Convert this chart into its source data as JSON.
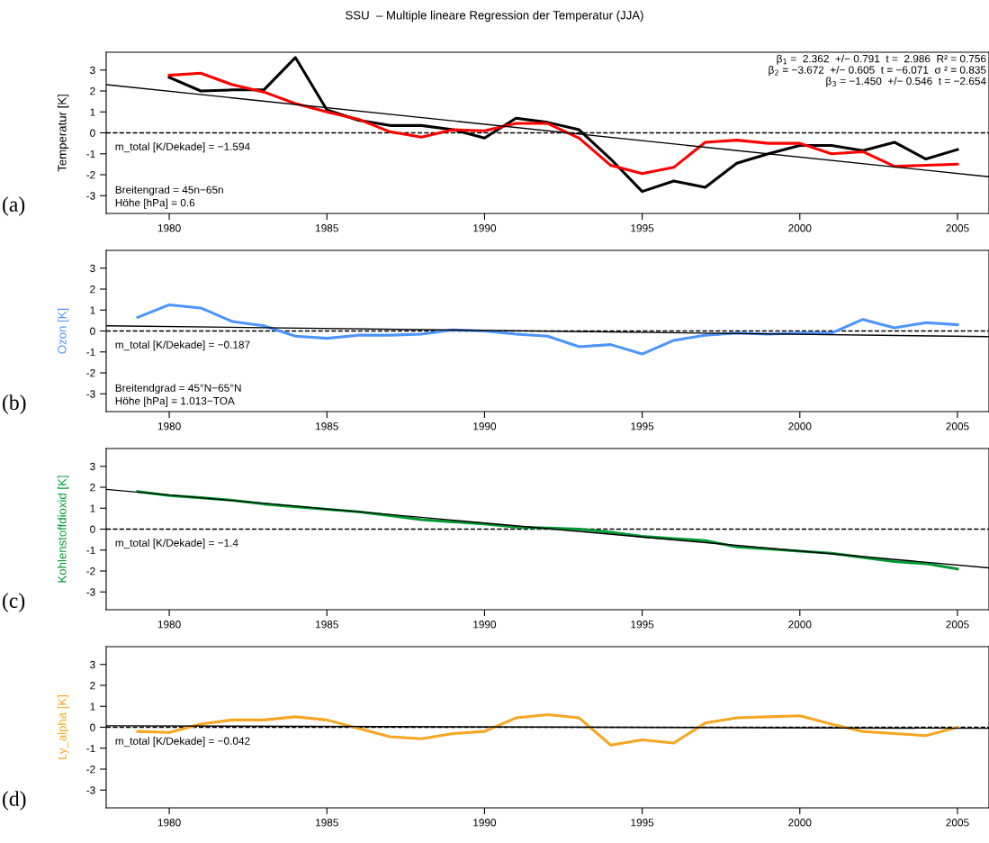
{
  "chart_data": [
    {
      "type": "line",
      "title": "SSU  – Multiple lineare Regression der Temperatur (JJA)",
      "ylabel": "Temperatur [K]",
      "xlim": [
        1978,
        2006
      ],
      "xticks": [
        1980,
        1985,
        1990,
        1995,
        2000,
        2005
      ],
      "ylim": [
        -3.85,
        3.85
      ],
      "yticks": [
        -3,
        -2,
        -1,
        0,
        1,
        2,
        3
      ],
      "grid": false,
      "legend": false,
      "marker": "none",
      "line_style": "solid",
      "series": [
        {
          "color": "#000000",
          "x": [
            1980,
            1981,
            1982,
            1983,
            1984,
            1985,
            1986,
            1987,
            1988,
            1989,
            1990,
            1991,
            1992,
            1993,
            1994,
            1995,
            1996,
            1997,
            1998,
            1999,
            2000,
            2001,
            2002,
            2003,
            2004,
            2005
          ],
          "values": [
            2.65,
            2.0,
            2.05,
            2.05,
            3.6,
            1.1,
            0.6,
            0.35,
            0.35,
            0.15,
            -0.25,
            0.7,
            0.5,
            0.15,
            -1.25,
            -2.8,
            -2.3,
            -2.6,
            -1.45,
            -1.0,
            -0.6,
            -0.6,
            -0.85,
            -0.45,
            -1.25,
            -0.8
          ]
        },
        {
          "color": "#ff0000",
          "x": [
            1980,
            1981,
            1982,
            1983,
            1984,
            1985,
            1986,
            1987,
            1988,
            1989,
            1990,
            1991,
            1992,
            1993,
            1994,
            1995,
            1996,
            1997,
            1998,
            1999,
            2000,
            2001,
            2002,
            2003,
            2004,
            2005
          ],
          "values": [
            2.75,
            2.85,
            2.3,
            1.95,
            1.4,
            1.0,
            0.65,
            0.05,
            -0.2,
            0.15,
            0.1,
            0.45,
            0.45,
            -0.25,
            -1.55,
            -1.95,
            -1.65,
            -0.45,
            -0.35,
            -0.5,
            -0.5,
            -1.0,
            -0.9,
            -1.6,
            -1.55,
            -1.5
          ]
        },
        {
          "color": "#000000",
          "x": [
            1978,
            2006
          ],
          "values": [
            2.3,
            -2.1
          ]
        }
      ],
      "ref_lines": [
        {
          "axis": "y",
          "value": 0,
          "line_style": "dashed",
          "color": "#000000"
        }
      ],
      "annotations": [
        "(a)",
        "m_total [K/Dekade] = −1.594",
        "Breitengrad = 45n−65n\nHöhe [hPa] = 0.6",
        "β$_{1}$ =  2.362  +/− 0.791  t =  2.986  R² = 0.756\nβ$_{2}$ = −3.672  +/− 0.605  t = −6.071  σ ² = 0.835\nβ$_{3}$ = −1.450  +/− 0.546  t = −2.654"
      ]
    },
    {
      "type": "line",
      "ylabel": "Ozon [K]",
      "xlim": [
        1978,
        2006
      ],
      "xticks": [
        1980,
        1985,
        1990,
        1995,
        2000,
        2005
      ],
      "ylim": [
        -3.85,
        3.85
      ],
      "yticks": [
        -3,
        -2,
        -1,
        0,
        1,
        2,
        3
      ],
      "grid": false,
      "legend": false,
      "marker": "none",
      "line_style": "solid",
      "series": [
        {
          "color": "#4d94ff",
          "x": [
            1979,
            1980,
            1981,
            1982,
            1983,
            1984,
            1985,
            1986,
            1987,
            1988,
            1989,
            1990,
            1991,
            1992,
            1993,
            1994,
            1995,
            1996,
            1997,
            1998,
            1999,
            2000,
            2001,
            2002,
            2003,
            2004,
            2005
          ],
          "values": [
            0.65,
            1.25,
            1.1,
            0.45,
            0.25,
            -0.25,
            -0.35,
            -0.2,
            -0.2,
            -0.15,
            0.05,
            0.0,
            -0.15,
            -0.25,
            -0.75,
            -0.65,
            -1.1,
            -0.45,
            -0.2,
            -0.1,
            -0.15,
            -0.1,
            -0.1,
            0.55,
            0.15,
            0.4,
            0.3
          ]
        },
        {
          "color": "#000000",
          "x": [
            1978,
            2006
          ],
          "values": [
            0.25,
            -0.27
          ]
        }
      ],
      "ref_lines": [
        {
          "axis": "y",
          "value": 0,
          "line_style": "dashed",
          "color": "#000000"
        }
      ],
      "annotations": [
        "(b)",
        "m_total [K/Dekade] = −0.187",
        "Breitendgrad = 45°N−65°N\nHöhe [hPa] = 1.013−TOA"
      ]
    },
    {
      "type": "line",
      "ylabel": "Kohlenstoffdioxid [K]",
      "xlim": [
        1978,
        2006
      ],
      "xticks": [
        1980,
        1985,
        1990,
        1995,
        2000,
        2005
      ],
      "ylim": [
        -3.85,
        3.85
      ],
      "yticks": [
        -3,
        -2,
        -1,
        0,
        1,
        2,
        3
      ],
      "grid": false,
      "legend": false,
      "marker": "none",
      "line_style": "solid",
      "series": [
        {
          "color": "#009933",
          "x": [
            1979,
            1980,
            1981,
            1982,
            1983,
            1984,
            1985,
            1986,
            1987,
            1988,
            1989,
            1990,
            1991,
            1992,
            1993,
            1994,
            1995,
            1996,
            1997,
            1998,
            1999,
            2000,
            2001,
            2002,
            2003,
            2004,
            2005
          ],
          "values": [
            1.8,
            1.6,
            1.5,
            1.38,
            1.2,
            1.07,
            0.95,
            0.83,
            0.65,
            0.45,
            0.35,
            0.25,
            0.1,
            0.05,
            0.0,
            -0.15,
            -0.35,
            -0.45,
            -0.55,
            -0.85,
            -0.95,
            -1.05,
            -1.15,
            -1.35,
            -1.55,
            -1.65,
            -1.9
          ]
        },
        {
          "color": "#000000",
          "x": [
            1978,
            2006
          ],
          "values": [
            1.9,
            -1.85
          ]
        }
      ],
      "ref_lines": [
        {
          "axis": "y",
          "value": 0,
          "line_style": "dashed",
          "color": "#000000"
        }
      ],
      "annotations": [
        "(c)",
        "m_total [K/Dekade] = −1.4"
      ]
    },
    {
      "type": "line",
      "ylabel": "Ly_alpha [K]",
      "xlim": [
        1978,
        2006
      ],
      "xticks": [
        1980,
        1985,
        1990,
        1995,
        2000,
        2005
      ],
      "ylim": [
        -3.85,
        3.85
      ],
      "yticks": [
        -3,
        -2,
        -1,
        0,
        1,
        2,
        3
      ],
      "grid": false,
      "legend": false,
      "marker": "none",
      "line_style": "solid",
      "series": [
        {
          "color": "#f5a623",
          "x": [
            1979,
            1980,
            1981,
            1982,
            1983,
            1984,
            1985,
            1986,
            1987,
            1988,
            1989,
            1990,
            1991,
            1992,
            1993,
            1994,
            1995,
            1996,
            1997,
            1998,
            1999,
            2000,
            2001,
            2002,
            2003,
            2004,
            2005
          ],
          "values": [
            -0.2,
            -0.25,
            0.15,
            0.35,
            0.35,
            0.5,
            0.35,
            -0.05,
            -0.45,
            -0.55,
            -0.3,
            -0.2,
            0.45,
            0.6,
            0.45,
            -0.85,
            -0.6,
            -0.75,
            0.2,
            0.45,
            0.5,
            0.55,
            0.15,
            -0.2,
            -0.3,
            -0.4,
            0.0
          ]
        },
        {
          "color": "#000000",
          "x": [
            1978,
            2006
          ],
          "values": [
            0.07,
            -0.05
          ]
        }
      ],
      "ref_lines": [
        {
          "axis": "y",
          "value": 0,
          "line_style": "dashed",
          "color": "#000000"
        }
      ],
      "annotations": [
        "(d)",
        "m_total [K/Dekade] = −0.042"
      ]
    }
  ]
}
